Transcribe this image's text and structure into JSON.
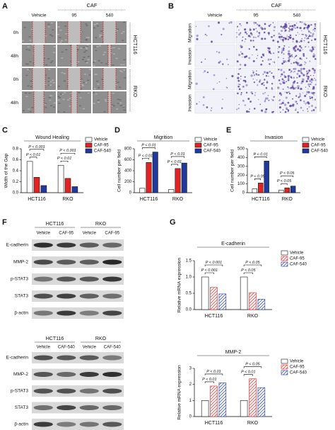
{
  "panels": {
    "A": {
      "letter": "A",
      "group": "CAF",
      "columns": [
        "Vehicle",
        "95",
        "540"
      ],
      "rows": [
        "0h",
        "48h",
        "0h",
        "48h"
      ],
      "cell_lines": [
        "HCT116",
        "RKO"
      ]
    },
    "B": {
      "letter": "B",
      "group": "CAF",
      "columns": [
        "Vehicle",
        "95",
        "540"
      ],
      "rows": [
        "Migration",
        "Invasion",
        "Migration",
        "Invasion"
      ],
      "cell_lines": [
        "HCT116",
        "RKO"
      ]
    },
    "F": {
      "letter": "F",
      "blots": [
        {
          "cell_lines": [
            "HCT116",
            "RKO"
          ],
          "lanes": [
            "Vehicle",
            "CAF-95",
            "Vehicle",
            "CAF-95"
          ],
          "bands": [
            "E-cadherin",
            "MMP-2",
            "p-STAT3",
            "STAT3",
            "β-actin"
          ]
        },
        {
          "cell_lines": [
            "HCT116",
            "RKO"
          ],
          "lanes": [
            "Vehicle",
            "CAF-540",
            "Vehicle",
            "CAF-540"
          ],
          "bands": [
            "E-cadherin",
            "MMP-2",
            "p-STAT3",
            "STAT3",
            "β-actin"
          ]
        }
      ]
    },
    "G": {
      "letter": "G"
    }
  },
  "chart_data": [
    {
      "type": "bar",
      "panel": "C",
      "title": "Wound Healing",
      "ylabel": "Width of the Gap",
      "categories": [
        "HCT116",
        "RKO"
      ],
      "series": [
        {
          "name": "Vehicle",
          "color": "#ffffff",
          "values": [
            0.57,
            0.5
          ]
        },
        {
          "name": "CAF-95",
          "color": "#e02424",
          "values": [
            0.28,
            0.26
          ]
        },
        {
          "name": "CAF-540",
          "color": "#1f3a9c",
          "values": [
            0.13,
            0.11
          ]
        }
      ],
      "ylim": [
        0,
        0.8
      ],
      "yticks": [
        {
          "value": 0,
          "label": "0.0"
        },
        {
          "value": 0.2,
          "label": "0.2"
        },
        {
          "value": 0.4,
          "label": "0.4"
        },
        {
          "value": 0.6,
          "label": "0.6"
        },
        {
          "value": 0.8,
          "label": "0.8"
        }
      ],
      "annotations": [
        "P < 0.01",
        "P < 0.001",
        "P < 0.01",
        "P < 0.001"
      ],
      "legend": "upper right",
      "hatch": false
    },
    {
      "type": "bar",
      "panel": "D",
      "title": "Migrition",
      "ylabel": "Cell number per field",
      "categories": [
        "HCT116",
        "RKO"
      ],
      "series": [
        {
          "name": "Vehicle",
          "color": "#ffffff",
          "values": [
            80,
            60
          ]
        },
        {
          "name": "CAF-95",
          "color": "#e02424",
          "values": [
            550,
            440
          ]
        },
        {
          "name": "CAF-540",
          "color": "#1f3a9c",
          "values": [
            740,
            540
          ]
        }
      ],
      "ylim": [
        0,
        800
      ],
      "yticks": [
        0,
        200,
        400,
        600,
        800
      ],
      "annotations": [
        "P < 0.01",
        "P < 0.01",
        "P < 0.01",
        "P < 0.01"
      ],
      "legend": "upper right",
      "hatch": false
    },
    {
      "type": "bar",
      "panel": "E",
      "title": "Invasion",
      "ylabel": "Cell number per field",
      "categories": [
        "HCT116",
        "RKO"
      ],
      "series": [
        {
          "name": "Vehicle",
          "color": "#ffffff",
          "values": [
            45,
            30
          ]
        },
        {
          "name": "CAF-95",
          "color": "#e02424",
          "values": [
            110,
            55
          ]
        },
        {
          "name": "CAF-540",
          "color": "#1f3a9c",
          "values": [
            360,
            75
          ]
        }
      ],
      "ylim": [
        0,
        500
      ],
      "yticks": [
        0,
        100,
        200,
        300,
        400,
        500
      ],
      "annotations": [
        "P < 0.05",
        "P < 0.01",
        "P < 0.05",
        "P < 0.05"
      ],
      "legend": "upper right",
      "hatch": false
    },
    {
      "type": "bar",
      "title": "E-cadherin",
      "ylabel": "Relative mRNA expression",
      "categories": [
        "HCT116",
        "RKO"
      ],
      "series": [
        {
          "name": "Vehicle",
          "color": "#ffffff",
          "values": [
            1.0,
            1.0
          ]
        },
        {
          "name": "CAF-95",
          "color": "#e02424",
          "values": [
            0.68,
            0.52
          ]
        },
        {
          "name": "CAF-540",
          "color": "#1f3a9c",
          "values": [
            0.48,
            0.32
          ]
        }
      ],
      "ylim": [
        0,
        1.5
      ],
      "yticks": [
        {
          "value": 0,
          "label": "0.0"
        },
        {
          "value": 0.5,
          "label": "0.5"
        },
        {
          "value": 1,
          "label": "1.0"
        },
        {
          "value": 1.5,
          "label": "1.5"
        }
      ],
      "annotations": [
        "P < 0.001",
        "P < 0.001",
        "P < 0.05",
        "P < 0.05"
      ],
      "legend": "upper right",
      "hatch": true
    },
    {
      "type": "bar",
      "title": "MMP-2",
      "ylabel": "Relative mRNA expression",
      "categories": [
        "HCT116",
        "RKO"
      ],
      "series": [
        {
          "name": "Vehicle",
          "color": "#ffffff",
          "values": [
            1.0,
            1.0
          ]
        },
        {
          "name": "CAF-95",
          "color": "#e02424",
          "values": [
            1.9,
            2.35
          ]
        },
        {
          "name": "CAF-540",
          "color": "#1f3a9c",
          "values": [
            2.1,
            1.8
          ]
        }
      ],
      "ylim": [
        0,
        3
      ],
      "yticks": [
        0,
        1,
        2,
        3
      ],
      "annotations": [
        "P < 0.01",
        "P < 0.01",
        "P < 0.01",
        "P < 0.05"
      ],
      "legend": "upper right",
      "hatch": true
    }
  ]
}
